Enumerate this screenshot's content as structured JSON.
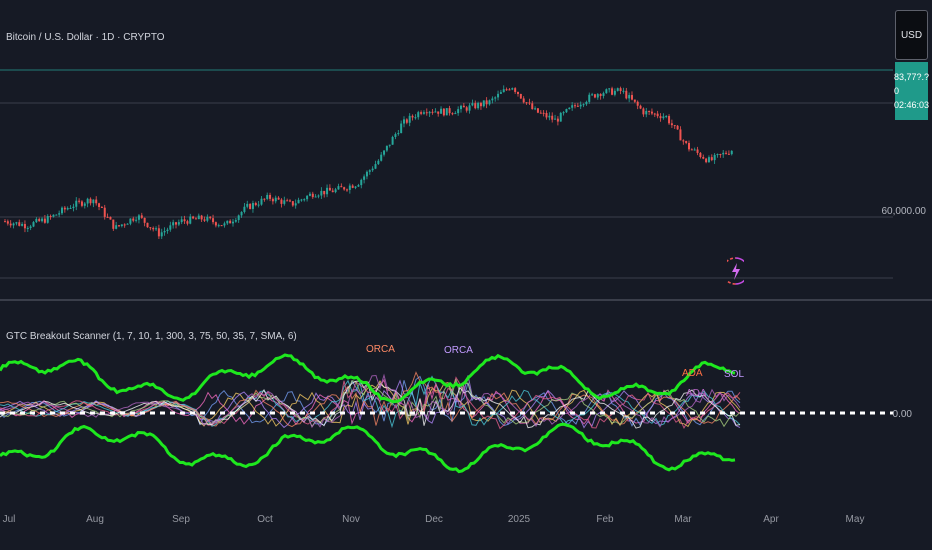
{
  "header": {
    "symbol_title": "Bitcoin / U.S. Dollar · 1D · CRYPTO",
    "indicator_title": "GTC Breakout Scanner (1, 7, 10, 1, 300, 3, 75, 50, 35, 7, SMA, 6)"
  },
  "price_scale": {
    "currency_button": "USD",
    "last_price_label": "83,77?.?0",
    "countdown": "02:46:03",
    "tick_label": "60,000.00"
  },
  "indicator_scale": {
    "zero_label": "0.00"
  },
  "time_axis": {
    "labels": [
      "Jul",
      "Aug",
      "Sep",
      "Oct",
      "Nov",
      "Dec",
      "2025",
      "Feb",
      "Mar",
      "Apr",
      "May"
    ]
  },
  "icons": {
    "event_marker": "lightning-icon"
  },
  "colors": {
    "background": "#161a25",
    "candle_up": "#26a69a",
    "candle_down": "#ef5350",
    "band": "#1ee81e",
    "price_line": "#26a69a",
    "zero_line": "#ffffff"
  },
  "chart_data": {
    "type": "candlestick",
    "series": [
      {
        "name": "BTCUSD",
        "approx_close": [
          58500,
          57000,
          59500,
          64000,
          66500,
          56000,
          60500,
          54000,
          58500,
          59500,
          57000,
          63500,
          67000,
          64500,
          68500,
          69500,
          72000,
          80500,
          93000,
          98500,
          97500,
          99000,
          101000,
          107000,
          98000,
          94500,
          100500,
          104500,
          105000,
          97500,
          96000,
          85000,
          80000,
          84000
        ]
      }
    ],
    "indicator": {
      "name": "GTC Breakout Scanner",
      "visible_labels": [
        "ORCA",
        "ORCA",
        "ADA",
        "ADA",
        "SOL"
      ],
      "zero_line": 0.0
    }
  }
}
